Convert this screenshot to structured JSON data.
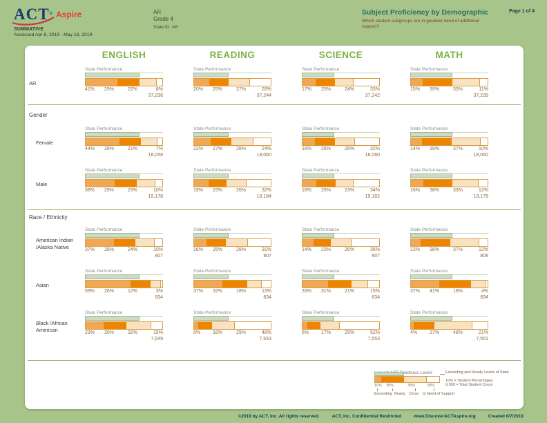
{
  "header": {
    "logo": {
      "act": "ACT",
      "aspire": "Aspire",
      "reg": "®"
    },
    "program": "SUMMATIVE",
    "assessed": "Assessed Apr 8, 2019 - May 18, 2019",
    "org": {
      "name": "AR",
      "grade": "Grade 4",
      "state_id": "State ID: AR"
    },
    "report_title": "Subject Proficiency by Demographic",
    "report_question": "Which student subgroups are in greatest need of additional support?",
    "page_number": "Page 1 of 4"
  },
  "cell": {
    "state_performance_label": "State Performance"
  },
  "legend": {
    "title": "Legend: ACT Readiness Levels",
    "sample_pcts": [
      10,
      35,
      35,
      20
    ],
    "sample_state_ref_pct": 45,
    "level_labels": [
      "Exceeding",
      "Ready",
      "Close",
      "In Need of Support"
    ],
    "state_ref_label": "Exceeding and Ready Levels of State",
    "pct_note": "10% = Student Percentages",
    "count_note": "9,999 = Total Student Count"
  },
  "footer": {
    "copyright": "©2019 by ACT, Inc. All rights reserved.",
    "confidential": "ACT, Inc. Confidential Restricted",
    "url": "www.DiscoverACTAspire.org",
    "created": "Created 6/7/2019"
  },
  "colors": {
    "page_bg": "#a7c58a",
    "exceeding": "#f0a855",
    "ready": "#ee8500",
    "close": "#f8e2c1",
    "in_need": "#ffffff",
    "bar_border": "#d89d43",
    "state_ref_fill": "#ccdbc2",
    "state_ref_border": "#9fb690",
    "subject_header": "#79b243",
    "title_teal": "#2c6d60",
    "question_maroon": "#8b3a17",
    "pct_text": "#8a6a3e"
  },
  "chart_data": {
    "type": "bar",
    "stacked": true,
    "orientation": "horizontal",
    "unit": "percent of students",
    "levels": [
      "Exceeding",
      "Ready",
      "Close",
      "In Need of Support"
    ],
    "subjects": [
      {
        "key": "english",
        "label": "ENGLISH",
        "state_exceeding_ready_pct": 70
      },
      {
        "key": "reading",
        "label": "READING",
        "state_exceeding_ready_pct": 45
      },
      {
        "key": "science",
        "label": "SCIENCE",
        "state_exceeding_ready_pct": 42
      },
      {
        "key": "math",
        "label": "MATH",
        "state_exceeding_ready_pct": 54
      }
    ],
    "sections": [
      {
        "heading": null,
        "rows": [
          {
            "label_lines": [
              "AR"
            ],
            "indent": false,
            "values": {
              "english": {
                "pcts": [
                  41,
                  29,
                  22,
                  8
                ],
                "total": "37,236"
              },
              "reading": {
                "pcts": [
                  20,
                  25,
                  27,
                  28
                ],
                "total": "37,244"
              },
              "science": {
                "pcts": [
                  17,
                  25,
                  24,
                  33
                ],
                "total": "37,242"
              },
              "math": {
                "pcts": [
                  15,
                  39,
                  35,
                  11
                ],
                "total": "37,239"
              }
            }
          }
        ]
      },
      {
        "heading": "Gender",
        "rows": [
          {
            "label_lines": [
              "Female"
            ],
            "indent": true,
            "values": {
              "english": {
                "pcts": [
                  44,
                  28,
                  21,
                  7
                ],
                "total": "18,058"
              },
              "reading": {
                "pcts": [
                  22,
                  27,
                  28,
                  24
                ],
                "total": "18,060"
              },
              "science": {
                "pcts": [
                  16,
                  26,
                  26,
                  32
                ],
                "total": "18,060"
              },
              "math": {
                "pcts": [
                  14,
                  39,
                  37,
                  10
                ],
                "total": "18,060"
              }
            }
          },
          {
            "label_lines": [
              "Male"
            ],
            "indent": true,
            "values": {
              "english": {
                "pcts": [
                  38,
                  29,
                  23,
                  10
                ],
                "total": "19,178"
              },
              "reading": {
                "pcts": [
                  19,
                  23,
                  26,
                  32
                ],
                "total": "19,184"
              },
              "science": {
                "pcts": [
                  18,
                  25,
                  23,
                  34
                ],
                "total": "19,182"
              },
              "math": {
                "pcts": [
                  16,
                  38,
                  33,
                  12
                ],
                "total": "19,179"
              }
            }
          }
        ]
      },
      {
        "heading": "Race / Ethnicity",
        "rows": [
          {
            "label_lines": [
              "American Indian",
              "/Alaska Native"
            ],
            "indent": true,
            "values": {
              "english": {
                "pcts": [
                  37,
                  28,
                  24,
                  10
                ],
                "total": "807"
              },
              "reading": {
                "pcts": [
                  16,
                  25,
                  28,
                  31
                ],
                "total": "807"
              },
              "science": {
                "pcts": [
                  14,
                  23,
                  26,
                  36
                ],
                "total": "807"
              },
              "math": {
                "pcts": [
                  13,
                  38,
                  37,
                  12
                ],
                "total": "808"
              }
            }
          },
          {
            "label_lines": [
              "Asian"
            ],
            "indent": true,
            "values": {
              "english": {
                "pcts": [
                  59,
                  26,
                  12,
                  3
                ],
                "total": "834"
              },
              "reading": {
                "pcts": [
                  37,
                  32,
                  18,
                  13
                ],
                "total": "834"
              },
              "science": {
                "pcts": [
                  33,
                  31,
                  21,
                  15
                ],
                "total": "834"
              },
              "math": {
                "pcts": [
                  37,
                  41,
                  18,
                  4
                ],
                "total": "834"
              }
            }
          },
          {
            "label_lines": [
              "Black /African",
              "American"
            ],
            "indent": true,
            "values": {
              "english": {
                "pcts": [
                  23,
                  30,
                  32,
                  15
                ],
                "total": "7,549"
              },
              "reading": {
                "pcts": [
                  5,
                  18,
                  29,
                  48
                ],
                "total": "7,553"
              },
              "science": {
                "pcts": [
                  6,
                  17,
                  25,
                  52
                ],
                "total": "7,553"
              },
              "math": {
                "pcts": [
                  4,
                  27,
                  48,
                  21
                ],
                "total": "7,551"
              }
            }
          }
        ]
      }
    ]
  }
}
